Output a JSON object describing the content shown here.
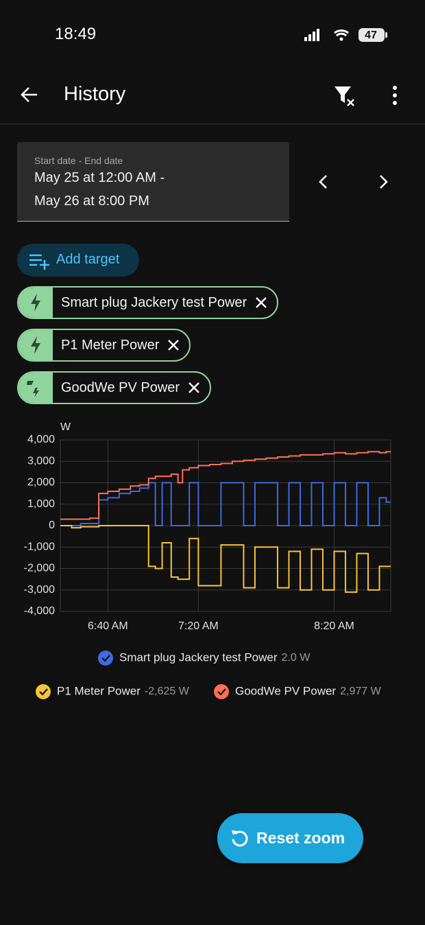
{
  "status_bar": {
    "time": "18:49",
    "battery": "47"
  },
  "header": {
    "title": "History"
  },
  "date_range": {
    "label": "Start date - End date",
    "start": "May 25 at 12:00 AM -",
    "end": "May 26 at 8:00 PM"
  },
  "add_target": "Add target",
  "targets": [
    "Smart plug Jackery test Power",
    "P1 Meter Power",
    "GoodWe PV Power"
  ],
  "chart_data": {
    "type": "line",
    "y_label": "W",
    "step": true,
    "grid": true,
    "x": [
      379,
      384,
      388,
      392,
      396,
      400,
      405,
      410,
      414,
      418,
      421,
      424,
      428,
      431,
      433,
      436,
      440,
      445,
      450,
      455,
      460,
      465,
      470,
      475,
      480,
      485,
      490,
      495,
      500,
      505,
      510,
      515,
      520,
      523,
      525
    ],
    "xlim": [
      379,
      525
    ],
    "xticks": [
      {
        "value": 400,
        "label": "6:40 AM"
      },
      {
        "value": 440,
        "label": "7:20 AM"
      },
      {
        "value": 500,
        "label": "8:20 AM"
      }
    ],
    "ylim": [
      -4000,
      4000
    ],
    "yticks": [
      {
        "value": 4000,
        "label": "4,000"
      },
      {
        "value": 3000,
        "label": "3,000"
      },
      {
        "value": 2000,
        "label": "2,000"
      },
      {
        "value": 1000,
        "label": "1,000"
      },
      0,
      {
        "value": -1000,
        "label": "-1,000"
      },
      {
        "value": -2000,
        "label": "-2,000"
      },
      {
        "value": -3000,
        "label": "-3,000"
      },
      {
        "value": -4000,
        "label": "-4,000"
      }
    ],
    "series": [
      {
        "name": "Smart plug Jackery test Power",
        "color": "#3f6ae0",
        "legend_value": "2.0 W",
        "values": [
          0,
          0,
          100,
          100,
          1200,
          1300,
          1500,
          1600,
          1750,
          2000,
          0,
          2000,
          0,
          0,
          0,
          2000,
          0,
          0,
          2000,
          2000,
          0,
          2000,
          2000,
          0,
          2000,
          0,
          2000,
          0,
          2000,
          0,
          2000,
          0,
          1300,
          1100,
          1100
        ]
      },
      {
        "name": "P1 Meter Power",
        "color": "#f9c23c",
        "legend_value": "-2,625 W",
        "values": [
          0,
          -100,
          -50,
          -50,
          0,
          0,
          0,
          0,
          0,
          -1900,
          -2000,
          -800,
          -2400,
          -2500,
          -2500,
          -600,
          -2800,
          -2800,
          -900,
          -900,
          -2900,
          -1000,
          -1000,
          -2900,
          -1200,
          -3000,
          -1100,
          -3000,
          -1200,
          -3100,
          -1300,
          -3000,
          -1900,
          -1900,
          -1900
        ]
      },
      {
        "name": "GoodWe PV Power",
        "color": "#ff6f55",
        "legend_value": "2,977 W",
        "values": [
          300,
          300,
          300,
          350,
          1500,
          1600,
          1700,
          1850,
          1900,
          2200,
          2300,
          2300,
          2400,
          2000,
          2600,
          2700,
          2800,
          2850,
          2900,
          3000,
          3050,
          3100,
          3150,
          3200,
          3250,
          3300,
          3300,
          3350,
          3400,
          3350,
          3400,
          3450,
          3400,
          3450,
          3450
        ]
      }
    ]
  },
  "reset_zoom": "Reset zoom"
}
